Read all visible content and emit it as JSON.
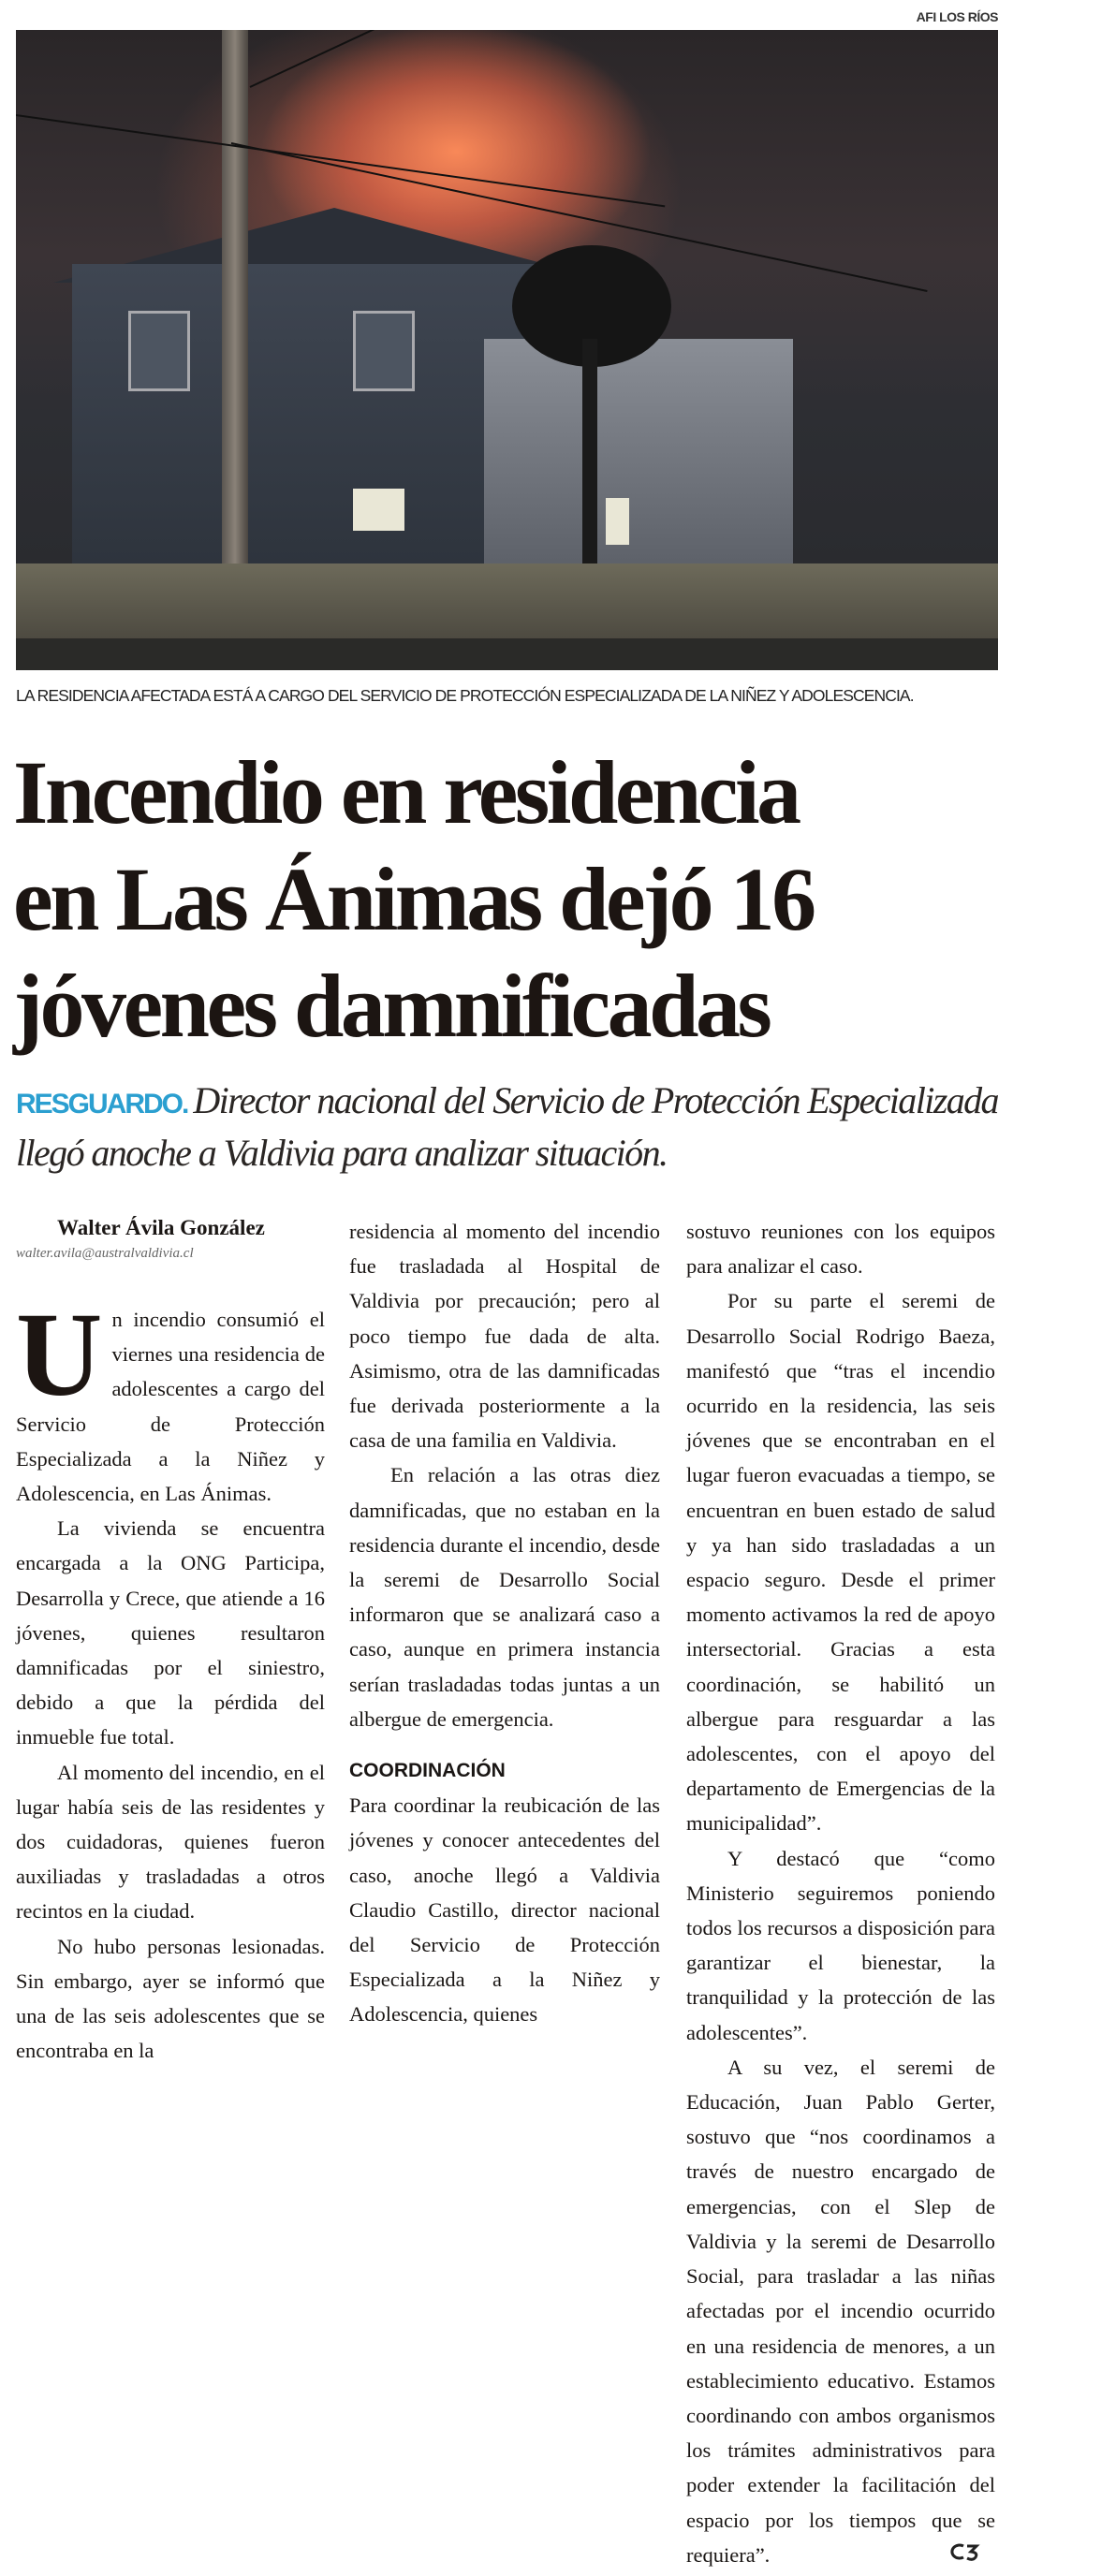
{
  "photo": {
    "credit": "AFI LOS RÍOS",
    "caption": "LA RESIDENCIA AFECTADA ESTÁ A CARGO DEL SERVICIO DE PROTECCIÓN ESPECIALIZADA DE LA NIÑEZ Y ADOLESCENCIA."
  },
  "headline": {
    "lines": [
      "Incendio en residencia",
      "en Las Ánimas dejó 16",
      "jóvenes  damnificadas"
    ]
  },
  "deck": {
    "kicker": "RESGUARDO.",
    "text": "Director nacional del Servicio de Protección Especializada llegó anoche a Valdivia para analizar situación."
  },
  "colors": {
    "kicker": "#2b9fd0",
    "text": "#1a1614"
  },
  "byline": {
    "author": "Walter Ávila González",
    "email": "walter.avila@australvaldivia.cl"
  },
  "body": {
    "drop_cap": "U",
    "p1": "n incendio consumió el viernes una residencia de adolescentes a cargo del Servicio de Protección Especializada a la Niñez y Adolescencia, en Las Ánimas.",
    "p2": "La vivienda se encuentra encargada a la ONG Participa, Desarrolla y Crece, que atiende a 16 jóvenes, quienes resultaron damnificadas por el siniestro, debido a que la pérdida del inmueble fue total.",
    "p3": "Al momento del incendio, en el lugar había seis de las residentes y dos cuidadoras, quienes fueron auxiliadas y trasladadas a otros recintos en la ciudad.",
    "p4a": "No hubo personas lesionadas. Sin embargo, ayer se informó que una de las seis adolescentes que se encontraba en la",
    "p4b": "residencia al momento del incendio fue trasladada al Hospital de Valdivia por precaución; pero al poco tiempo fue dada de alta. Asimismo, otra de las damnificadas fue derivada posteriormente a la casa de una familia en Valdivia.",
    "p5": "En relación a las otras diez damnificadas, que no estaban en la residencia durante el incendio, desde la seremi de Desarrollo Social informaron que se analizará caso a caso, aunque en primera instancia serían trasladadas todas juntas a un albergue de emergencia.",
    "subhead": "COORDINACIÓN",
    "p6a": "Para coordinar la reubicación de las jóvenes y conocer antecedentes del caso, anoche llegó a Valdivia  Claudio Castillo, director nacional del Servicio de Protección Especializada a la Niñez y Adolescencia, quienes",
    "p6b": "sostuvo reuniones con los equipos para analizar el caso.",
    "p7": "Por su parte el seremi de Desarrollo Social Rodrigo Baeza, manifestó que “tras el incendio ocurrido en la residencia, las seis jóvenes que se encontraban en el lugar fueron evacuadas a tiempo, se encuentran en buen estado de salud y ya han sido trasladadas a un espacio seguro. Desde el primer momento activamos la red de apoyo intersectorial. Gracias a esta coordinación, se habilitó un albergue para resguardar a las adolescentes, con el apoyo del departamento de Emergencias de la municipalidad”.",
    "p8": "Y destacó que “como Ministerio seguiremos poniendo todos los recursos a disposición para garantizar el bienestar, la tranquilidad y la protección de las adolescentes”.",
    "p9": "A su vez, el seremi de Educación, Juan Pablo Gerter, sostuvo que “nos coordinamos a través de nuestro encargado de emergencias, con el Slep de Valdivia y la seremi de Desarrollo Social, para trasladar a las niñas afectadas por el incendio ocurrido en una residencia de menores, a un establecimiento educativo. Estamos coordinando con ambos organismos los trámites administrativos para poder extender la facilitación del espacio por los tiempos que se requiera”."
  }
}
